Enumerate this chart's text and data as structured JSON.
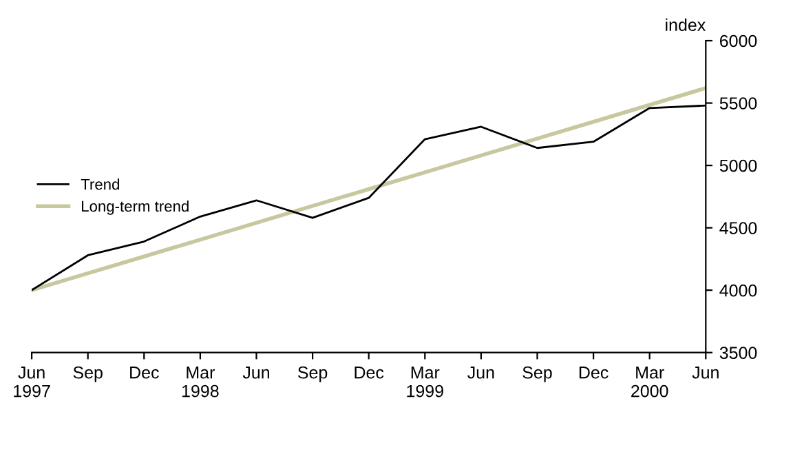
{
  "chart_data": {
    "type": "line",
    "ylabel": "index",
    "categories": [
      "Jun\n1997",
      "Sep",
      "Dec",
      "Mar\n1998",
      "Jun",
      "Sep",
      "Dec",
      "Mar\n1999",
      "Jun",
      "Sep",
      "Dec",
      "Mar\n2000",
      "Jun"
    ],
    "series": [
      {
        "name": "Trend",
        "color": "#000000",
        "values": [
          4000,
          4280,
          4390,
          4590,
          4720,
          4580,
          4740,
          5210,
          5310,
          5140,
          5190,
          5460,
          5480
        ]
      },
      {
        "name": "Long-term trend",
        "color": "#c8c8a0",
        "values": [
          4000,
          4135,
          4270,
          4405,
          4540,
          4675,
          4810,
          4945,
          5080,
          5215,
          5350,
          5485,
          5620
        ]
      }
    ],
    "ylim": [
      3500,
      6000
    ],
    "yticks": [
      3500,
      4000,
      4500,
      5000,
      5500,
      6000
    ],
    "grid": false,
    "legend": "center left",
    "marker": "none",
    "line_style": "solid"
  }
}
